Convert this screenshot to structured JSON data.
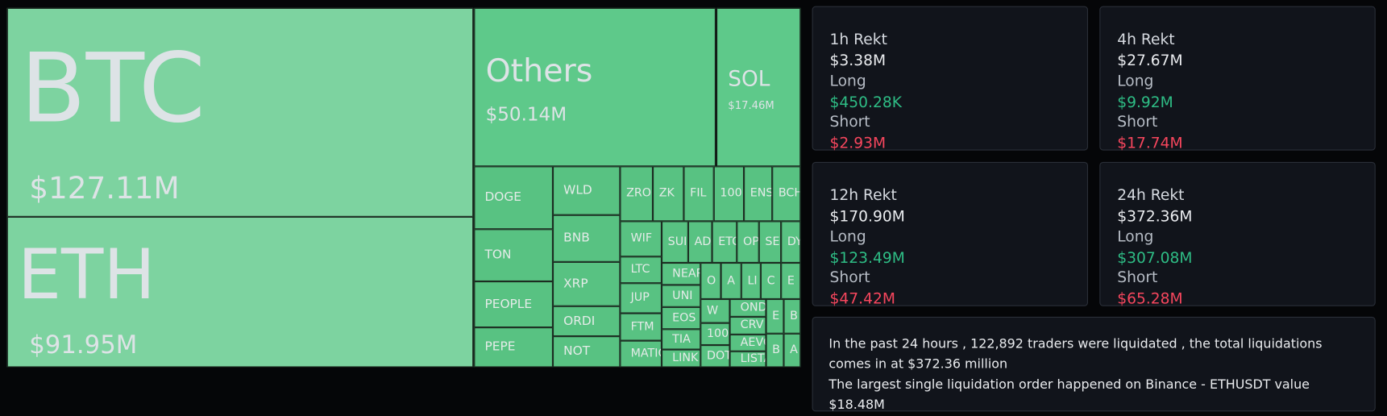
{
  "treemap": {
    "tiles": [
      {
        "label": "BTC",
        "value": "$127.11M"
      },
      {
        "label": "ETH",
        "value": "$91.95M"
      },
      {
        "label": "Others",
        "value": "$50.14M"
      },
      {
        "label": "SOL",
        "value": "$17.46M"
      },
      {
        "label": "DOGE"
      },
      {
        "label": "TON"
      },
      {
        "label": "PEOPLE"
      },
      {
        "label": "PEPE"
      },
      {
        "label": "WLD"
      },
      {
        "label": "BNB"
      },
      {
        "label": "XRP"
      },
      {
        "label": "ORDI"
      },
      {
        "label": "NOT"
      },
      {
        "label": "ZRO"
      },
      {
        "label": "ZK"
      },
      {
        "label": "FIL"
      },
      {
        "label": "100"
      },
      {
        "label": "ENS"
      },
      {
        "label": "BCH"
      },
      {
        "label": "WIF"
      },
      {
        "label": "LTC"
      },
      {
        "label": "JUP"
      },
      {
        "label": "FTM"
      },
      {
        "label": "MATIC"
      },
      {
        "label": "SUI"
      },
      {
        "label": "ADA"
      },
      {
        "label": "ETC"
      },
      {
        "label": "OP"
      },
      {
        "label": "SEI"
      },
      {
        "label": "DYDX"
      },
      {
        "label": "NEAR"
      },
      {
        "label": "UNI"
      },
      {
        "label": "EOS"
      },
      {
        "label": "TIA"
      },
      {
        "label": "LINK"
      },
      {
        "label": "O"
      },
      {
        "label": "A"
      },
      {
        "label": "LI"
      },
      {
        "label": "C"
      },
      {
        "label": "E"
      },
      {
        "label": "W"
      },
      {
        "label": "100"
      },
      {
        "label": "DOT"
      },
      {
        "label": "ONDO"
      },
      {
        "label": "CRV"
      },
      {
        "label": "AEVO"
      },
      {
        "label": "LISTA"
      },
      {
        "label": "E"
      },
      {
        "label": "B"
      },
      {
        "label": "B"
      },
      {
        "label": "A"
      }
    ]
  },
  "cards": [
    {
      "title": "1h Rekt",
      "total": "$3.38M",
      "rows": [
        {
          "label": "Long",
          "value": "$450.28K"
        },
        {
          "label": "Short",
          "value": "$2.93M"
        }
      ]
    },
    {
      "title": "4h Rekt",
      "total": "$27.67M",
      "rows": [
        {
          "label": "Long",
          "value": "$9.92M"
        },
        {
          "label": "Short",
          "value": "$17.74M"
        }
      ]
    },
    {
      "title": "12h Rekt",
      "total": "$170.90M",
      "rows": [
        {
          "label": "Long",
          "value": "$123.49M"
        },
        {
          "label": "Short",
          "value": "$47.42M"
        }
      ]
    },
    {
      "title": "24h Rekt",
      "total": "$372.36M",
      "rows": [
        {
          "label": "Long",
          "value": "$307.08M"
        },
        {
          "label": "Short",
          "value": "$65.28M"
        }
      ]
    }
  ],
  "summary": {
    "lines": [
      "In the past 24 hours , 122,892 traders were liquidated , the total liquidations comes in at $372.36 million",
      "The largest single liquidation order happened on Binance - ETHUSDT value $18.48M"
    ]
  }
}
